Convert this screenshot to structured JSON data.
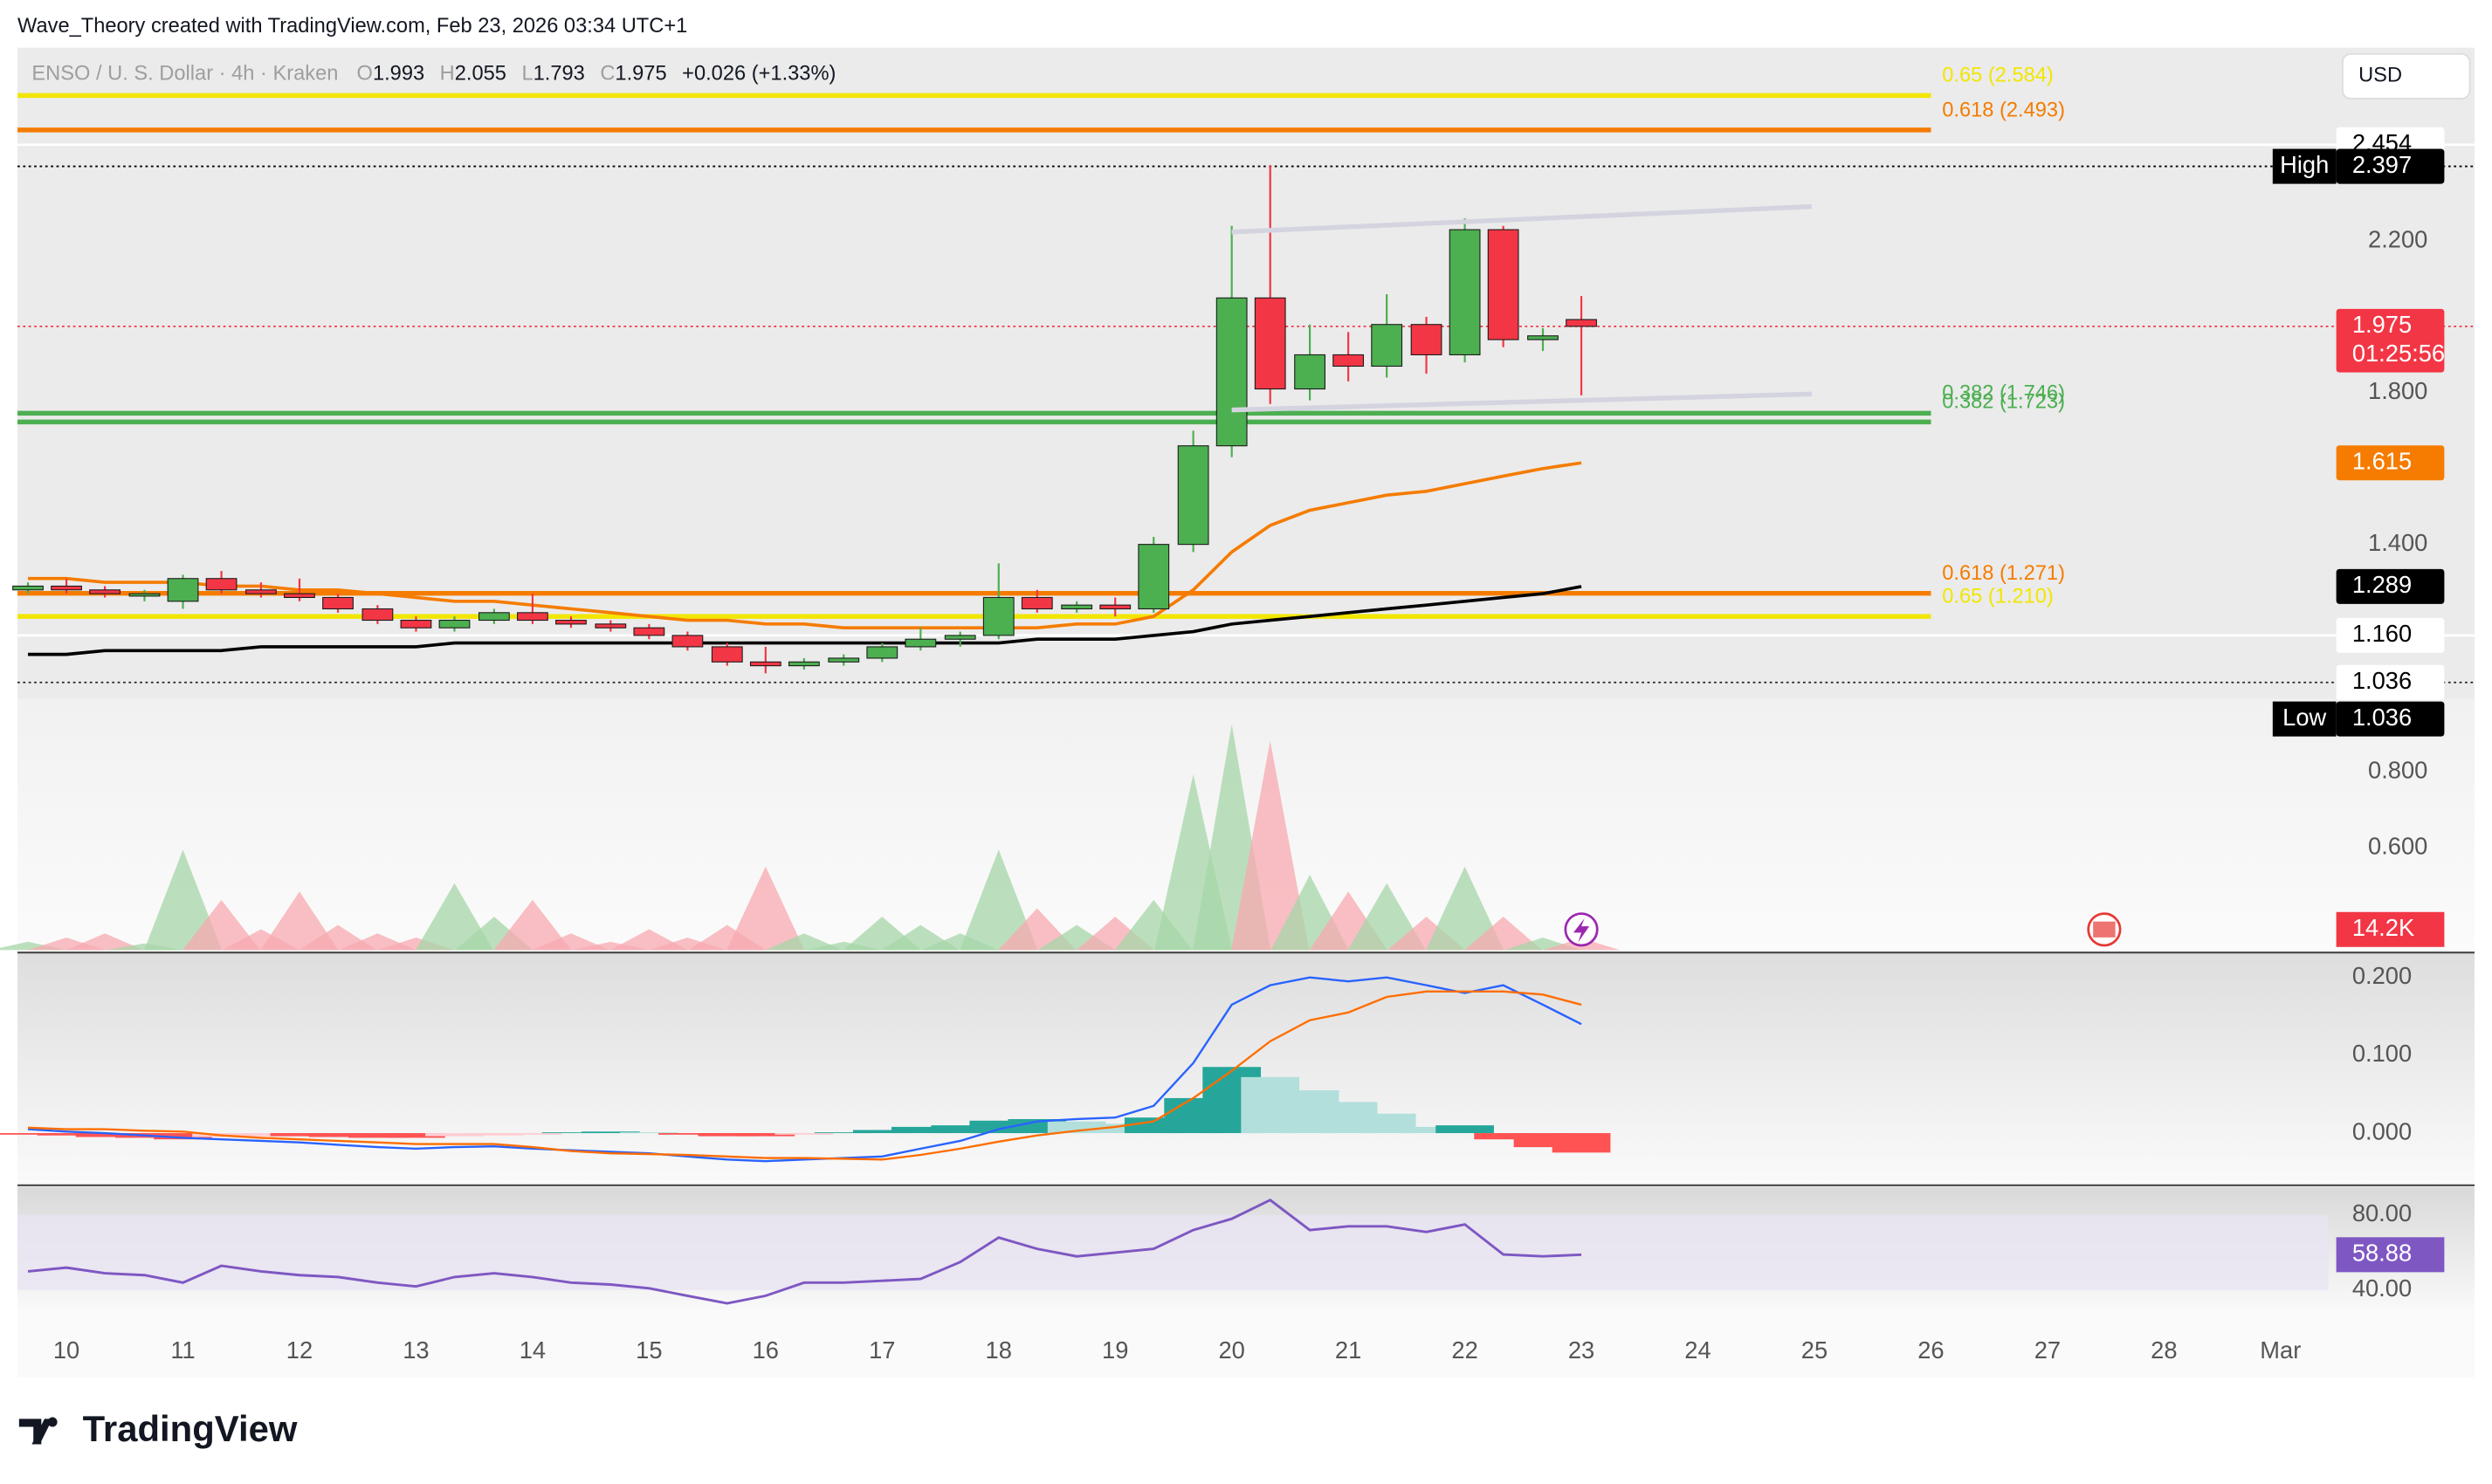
{
  "header": {
    "attribution": "Wave_Theory created with TradingView.com, Feb 23, 2026 03:34 UTC+1",
    "symbol": "ENSO / U. S. Dollar · 4h · Kraken",
    "ohlc": [
      {
        "key": "O",
        "value": "1.993"
      },
      {
        "key": "H",
        "value": "2.055"
      },
      {
        "key": "L",
        "value": "1.793"
      },
      {
        "key": "C",
        "value": "1.975"
      }
    ],
    "change": "+0.026 (+1.33%)",
    "currency": "USD",
    "logo": "TradingView"
  },
  "chart_data": [
    {
      "type": "candlestick",
      "up_color": "#4caf50",
      "down_color": "#f23645",
      "x": [
        9.67,
        10,
        10.33,
        10.67,
        11,
        11.33,
        11.67,
        12,
        12.33,
        12.67,
        13,
        13.33,
        13.67,
        14,
        14.33,
        14.67,
        15,
        15.33,
        15.67,
        16,
        16.33,
        16.67,
        17,
        17.33,
        17.67,
        18,
        18.33,
        18.67,
        19,
        19.33,
        19.67,
        20,
        20.33,
        20.67,
        21,
        21.33,
        21.67,
        22,
        22.33,
        22.67,
        23
      ],
      "open": [
        1.28,
        1.29,
        1.28,
        1.27,
        1.25,
        1.31,
        1.28,
        1.27,
        1.26,
        1.23,
        1.2,
        1.18,
        1.2,
        1.22,
        1.2,
        1.19,
        1.18,
        1.16,
        1.13,
        1.09,
        1.08,
        1.09,
        1.1,
        1.13,
        1.15,
        1.16,
        1.26,
        1.23,
        1.24,
        1.23,
        1.4,
        1.66,
        2.05,
        1.81,
        1.9,
        1.87,
        1.98,
        1.9,
        2.23,
        1.94,
        1.993
      ],
      "high": [
        1.3,
        1.31,
        1.29,
        1.28,
        1.32,
        1.33,
        1.3,
        1.31,
        1.27,
        1.24,
        1.21,
        1.21,
        1.23,
        1.27,
        1.21,
        1.2,
        1.19,
        1.17,
        1.14,
        1.13,
        1.1,
        1.11,
        1.14,
        1.18,
        1.17,
        1.35,
        1.28,
        1.25,
        1.26,
        1.42,
        1.7,
        2.24,
        2.4,
        1.98,
        1.96,
        2.06,
        2.0,
        2.26,
        2.24,
        1.97,
        2.055
      ],
      "low": [
        1.27,
        1.27,
        1.26,
        1.25,
        1.23,
        1.27,
        1.26,
        1.25,
        1.22,
        1.19,
        1.17,
        1.17,
        1.19,
        1.19,
        1.18,
        1.17,
        1.15,
        1.12,
        1.08,
        1.06,
        1.07,
        1.08,
        1.09,
        1.12,
        1.13,
        1.15,
        1.22,
        1.22,
        1.21,
        1.22,
        1.38,
        1.63,
        1.77,
        1.78,
        1.83,
        1.84,
        1.85,
        1.88,
        1.92,
        1.91,
        1.793
      ],
      "close": [
        1.29,
        1.28,
        1.27,
        1.27,
        1.31,
        1.28,
        1.27,
        1.26,
        1.23,
        1.2,
        1.18,
        1.2,
        1.22,
        1.2,
        1.19,
        1.18,
        1.16,
        1.13,
        1.09,
        1.08,
        1.09,
        1.1,
        1.13,
        1.15,
        1.16,
        1.26,
        1.23,
        1.24,
        1.23,
        1.4,
        1.66,
        2.05,
        1.81,
        1.9,
        1.87,
        1.98,
        1.9,
        2.23,
        1.94,
        1.95,
        1.975
      ],
      "lines": [
        {
          "color": "#f57c00",
          "values": [
            1.31,
            1.31,
            1.3,
            1.3,
            1.3,
            1.29,
            1.29,
            1.28,
            1.28,
            1.27,
            1.26,
            1.25,
            1.25,
            1.24,
            1.23,
            1.22,
            1.21,
            1.2,
            1.2,
            1.19,
            1.19,
            1.18,
            1.18,
            1.18,
            1.18,
            1.18,
            1.18,
            1.19,
            1.19,
            1.21,
            1.28,
            1.38,
            1.45,
            1.49,
            1.51,
            1.53,
            1.54,
            1.56,
            1.58,
            1.6,
            1.615
          ]
        },
        {
          "color": "#000000",
          "values": [
            1.11,
            1.11,
            1.12,
            1.12,
            1.12,
            1.12,
            1.13,
            1.13,
            1.13,
            1.13,
            1.13,
            1.14,
            1.14,
            1.14,
            1.14,
            1.14,
            1.14,
            1.14,
            1.14,
            1.14,
            1.14,
            1.14,
            1.14,
            1.14,
            1.14,
            1.14,
            1.15,
            1.15,
            1.15,
            1.16,
            1.17,
            1.19,
            1.2,
            1.21,
            1.22,
            1.23,
            1.24,
            1.25,
            1.26,
            1.27,
            1.289
          ]
        }
      ],
      "levels": [
        {
          "value": 2.584,
          "label": "0.65 (2.584)",
          "color": "#f2e600"
        },
        {
          "value": 2.493,
          "label": "0.618 (2.493)",
          "color": "#f57c00"
        },
        {
          "value": 1.746,
          "label": "0.382 (1.746)",
          "color": "#4caf50"
        },
        {
          "value": 1.723,
          "label": "0.382 (1.723)",
          "color": "#4caf50"
        },
        {
          "value": 1.271,
          "label": "0.618 (1.271)",
          "color": "#f57c00"
        },
        {
          "value": 1.21,
          "label": "0.65 (1.210)",
          "color": "#f2e600"
        }
      ],
      "price_labels": [
        {
          "value": 2.454,
          "label": "2.454",
          "color": "#ffffff",
          "line_style": "solid"
        },
        {
          "value": 2.397,
          "label": "2.397",
          "tag": "High",
          "color": "#000000",
          "line_style": "dotted"
        },
        {
          "value": 1.975,
          "label": "1.975",
          "sub": "01:25:56",
          "color": "#f23645",
          "line_style": "dotted"
        },
        {
          "value": 1.615,
          "label": "1.615",
          "color": "#f57c00"
        },
        {
          "value": 1.289,
          "label": "1.289",
          "color": "#000000"
        },
        {
          "value": 1.16,
          "label": "1.160",
          "color": "#ffffff",
          "line_style": "solid"
        },
        {
          "value": 1.036,
          "label": "1.036",
          "color": "#ffffff",
          "line_style": "dotted"
        },
        {
          "value": 1.036,
          "label": "1.036",
          "tag": "Low",
          "color": "#000000"
        }
      ],
      "xlim": [
        9.58,
        29.41
      ],
      "ylim": [
        0.33,
        2.71
      ],
      "xticks": [
        10,
        11,
        12,
        13,
        14,
        15,
        16,
        17,
        18,
        19,
        20,
        21,
        22,
        23,
        24,
        25,
        26,
        27,
        28,
        {
          "value": 29,
          "label": "Mar"
        }
      ],
      "yticks": [
        {
          "value": 2.2,
          "label": "2.200"
        },
        {
          "value": 1.8,
          "label": "1.800"
        },
        {
          "value": 1.4,
          "label": "1.400"
        },
        {
          "value": 0.8,
          "label": "0.800"
        },
        {
          "value": 0.6,
          "label": "0.600"
        }
      ],
      "grid": false
    },
    {
      "type": "area",
      "up_color": "#a5d6a7",
      "down_color": "#f7a9b0",
      "values": [
        10,
        15,
        20,
        8,
        120,
        60,
        25,
        70,
        30,
        20,
        15,
        80,
        40,
        60,
        20,
        10,
        25,
        15,
        30,
        100,
        20,
        10,
        40,
        30,
        20,
        120,
        50,
        30,
        40,
        60,
        210,
        270,
        250,
        90,
        70,
        80,
        40,
        100,
        40,
        15,
        14.2
      ],
      "value_labels": [
        null,
        null,
        null,
        null,
        null,
        null,
        null,
        null,
        null,
        null,
        null,
        null,
        null,
        null,
        null,
        null,
        null,
        null,
        null,
        null,
        null,
        null,
        null,
        null,
        null,
        null,
        null,
        null,
        null,
        null,
        null,
        null,
        null,
        null,
        null,
        null,
        null,
        null,
        null,
        null,
        "14.2K"
      ],
      "ylim": [
        0,
        300
      ]
    },
    {
      "type": "macd",
      "histogram": {
        "values": [
          -0.002,
          -0.003,
          -0.005,
          -0.006,
          -0.008,
          -0.005,
          -0.004,
          -0.004,
          -0.005,
          -0.006,
          -0.006,
          -0.004,
          -0.003,
          -0.002,
          0.001,
          0.002,
          0.001,
          -0.002,
          -0.004,
          -0.004,
          -0.002,
          0.001,
          0.004,
          0.008,
          0.01,
          0.016,
          0.018,
          0.015,
          0.012,
          0.02,
          0.045,
          0.085,
          0.072,
          0.055,
          0.04,
          0.025,
          0.008,
          0.01,
          -0.008,
          -0.018,
          -0.025
        ],
        "colors": {
          "grow_above": "#26a69a",
          "fall_above": "#b2dfdb",
          "grow_below": "#ffcdd2",
          "fall_below": "#ff5252"
        }
      },
      "series": [
        {
          "color": "#2962ff",
          "values": [
            0.005,
            0.002,
            0.0,
            -0.003,
            -0.006,
            -0.008,
            -0.01,
            -0.012,
            -0.015,
            -0.018,
            -0.02,
            -0.018,
            -0.017,
            -0.02,
            -0.022,
            -0.024,
            -0.026,
            -0.03,
            -0.034,
            -0.036,
            -0.034,
            -0.032,
            -0.03,
            -0.02,
            -0.01,
            0.005,
            0.015,
            0.018,
            0.02,
            0.035,
            0.09,
            0.165,
            0.19,
            0.2,
            0.195,
            0.2,
            0.19,
            0.18,
            0.19,
            0.165,
            0.14
          ]
        },
        {
          "color": "#ff6d00",
          "values": [
            0.007,
            0.005,
            0.005,
            0.003,
            0.002,
            -0.003,
            -0.006,
            -0.008,
            -0.01,
            -0.012,
            -0.014,
            -0.014,
            -0.014,
            -0.018,
            -0.023,
            -0.026,
            -0.027,
            -0.028,
            -0.03,
            -0.032,
            -0.032,
            -0.033,
            -0.034,
            -0.028,
            -0.02,
            -0.011,
            -0.003,
            0.003,
            0.008,
            0.015,
            0.045,
            0.08,
            0.118,
            0.145,
            0.155,
            0.175,
            0.182,
            0.182,
            0.182,
            0.178,
            0.165
          ]
        }
      ],
      "ylim": [
        -0.065,
        0.231
      ],
      "yticks": [
        {
          "value": 0.2,
          "label": "0.200"
        },
        {
          "value": 0.1,
          "label": "0.100"
        },
        {
          "value": 0,
          "label": "0.000"
        }
      ]
    },
    {
      "type": "line",
      "series": [
        {
          "color": "#7e57c2",
          "values": [
            50,
            52,
            49,
            48,
            44,
            53,
            50,
            48,
            47,
            44,
            42,
            47,
            49,
            47,
            44,
            43,
            41,
            37,
            33,
            37,
            44,
            44,
            45,
            46,
            55,
            68,
            62,
            58,
            60,
            62,
            72,
            78,
            88,
            72,
            74,
            74,
            71,
            75,
            59,
            58,
            58.88
          ]
        }
      ],
      "band": {
        "from": 40,
        "to": 80,
        "color": "#e8e3f3"
      },
      "ylim": [
        29,
        95
      ],
      "yticks": [
        {
          "value": 80,
          "label": "80.00"
        },
        {
          "value": 40,
          "label": "40.00"
        }
      ]
    }
  ]
}
